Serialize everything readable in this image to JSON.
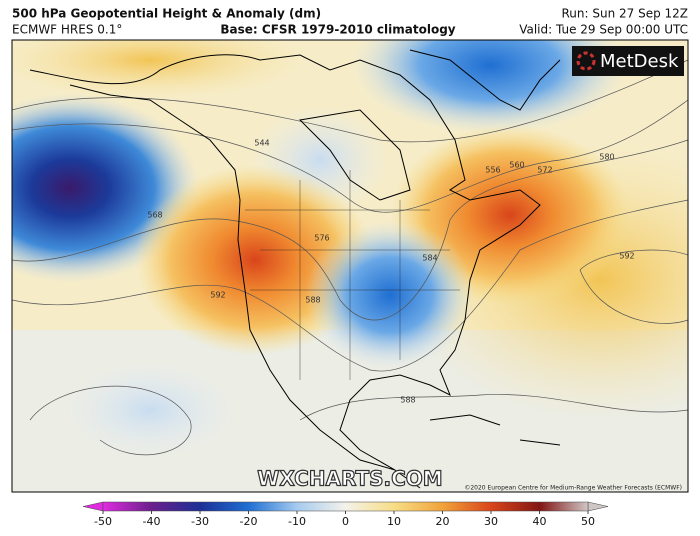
{
  "header": {
    "title": "500 hPa Geopotential Height & Anomaly (dm)",
    "model": "ECMWF HRES 0.1°",
    "base": "Base: CFSR 1979-2010 climatology",
    "run": "Run: Sun 27 Sep 12Z",
    "valid": "Valid: Tue 29 Sep 00:00 UTC"
  },
  "logo": "MetDesk",
  "watermark": "WXCHARTS.COM",
  "credit": "©2020 European Centre for Medium-Range Weather Forecasts (ECMWF)",
  "contour_labels": [
    "544",
    "556",
    "560",
    "572",
    "580",
    "568",
    "576",
    "584",
    "592",
    "592",
    "588",
    "588"
  ],
  "colorbar": {
    "ticks": [
      -50,
      -40,
      -30,
      -20,
      -10,
      0,
      10,
      20,
      30,
      40,
      50
    ],
    "colors": [
      "#e02ce0",
      "#6a1f8c",
      "#1c2f96",
      "#1f6fd2",
      "#a6cbef",
      "#f4f2ea",
      "#f7de86",
      "#f0a33a",
      "#d9451b",
      "#821514",
      "#cfc6c6"
    ]
  }
}
